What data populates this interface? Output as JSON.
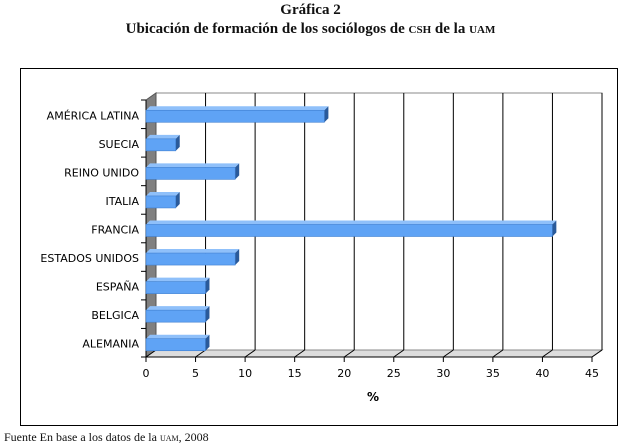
{
  "title": "Gráfica 2",
  "subtitle_main": "Ubicación de formación de los sociólogos de",
  "subtitle_csh": "CSH",
  "subtitle_mid": "de la",
  "subtitle_uam": "UAM",
  "source_prefix": "Fuente En base a los datos de la",
  "source_uam": "UAM",
  "source_suffix": ", 2008",
  "chart_data": {
    "type": "bar",
    "orientation": "horizontal",
    "style": "3d",
    "categories": [
      "AMÉRICA LATINA",
      "SUECIA",
      "REINO UNIDO",
      "ITALIA",
      "FRANCIA",
      "ESTADOS UNIDOS",
      "ESPAÑA",
      "BELGICA",
      "ALEMANIA"
    ],
    "values": [
      18,
      3,
      9,
      3,
      41,
      9,
      6,
      6,
      6
    ],
    "xlabel": "%",
    "ylabel": "",
    "xlim": [
      0,
      45
    ],
    "xticks": [
      "0",
      "5",
      "10",
      "15",
      "20",
      "25",
      "30",
      "35",
      "40",
      "45"
    ],
    "grid": "vertical",
    "bar_color": "#5fa3f5",
    "legend": "none"
  }
}
